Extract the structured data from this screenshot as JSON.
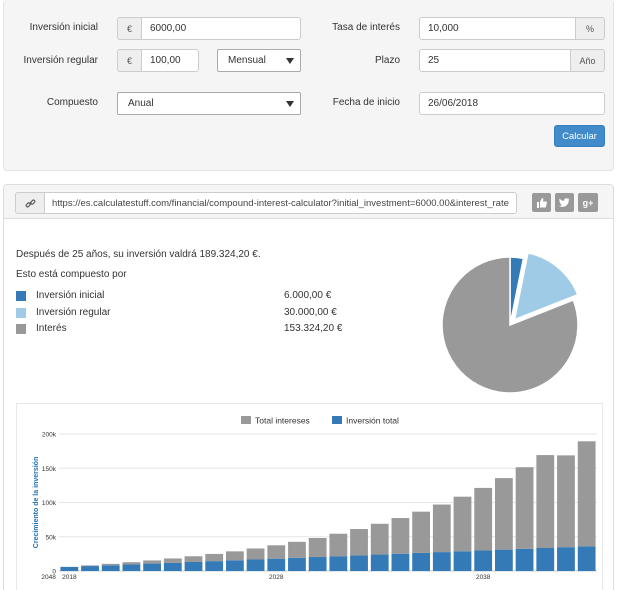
{
  "form": {
    "initial_label": "Inversión inicial",
    "initial_currency": "€",
    "initial_value": "6000,00",
    "regular_label": "Inversión regular",
    "regular_currency": "€",
    "regular_value": "100,00",
    "frequency_value": "Mensual",
    "compound_label": "Compuesto",
    "compound_value": "Anual",
    "rate_label": "Tasa de interés",
    "rate_value": "10,000",
    "rate_unit": "%",
    "term_label": "Plazo",
    "term_value": "25",
    "term_unit": "Año",
    "start_label": "Fecha de inicio",
    "start_value": "26/06/2018",
    "calc_button": "Calcular"
  },
  "share": {
    "url": "https://es.calculatestuff.com/financial/compound-interest-calculator?initial_investment=6000.00&interest_rate",
    "icons": [
      "link-icon",
      "thumbs-up-icon",
      "twitter-icon",
      "google-plus-icon"
    ]
  },
  "results": {
    "summary": "Después de 25 años, su inversión valdrá 189.324,20 €.",
    "compound_by": "Esto está compuesto por",
    "breakdown": [
      {
        "name": "Inversión inicial",
        "value": "6.000,00 €",
        "color": "#337ab7"
      },
      {
        "name": "Inversión regular",
        "value": "30.000,00 €",
        "color": "#9fcbe6"
      },
      {
        "name": "Interés",
        "value": "153.324,20 €",
        "color": "#999999"
      }
    ]
  },
  "chart_data": [
    {
      "type": "pie",
      "labels": [
        "Inversión inicial",
        "Inversión regular",
        "Interés"
      ],
      "values": [
        6000.0,
        30000.0,
        153324.2
      ],
      "colors": [
        "#337ab7",
        "#9fcbe6",
        "#999999"
      ],
      "exploded": "Inversión regular"
    },
    {
      "type": "bar",
      "stacked": true,
      "ylabel": "Crecimiento de la inversión",
      "ylim": [
        0,
        200000
      ],
      "yticks": [
        "0",
        "50k",
        "100k",
        "150k",
        "200k"
      ],
      "yticks_values": [
        0,
        50000,
        100000,
        150000,
        200000
      ],
      "xticks": [
        "2018",
        "2028",
        "2038",
        "2048"
      ],
      "legend_position": "top-center",
      "categories": [
        2018,
        2019,
        2020,
        2021,
        2022,
        2023,
        2024,
        2025,
        2026,
        2027,
        2028,
        2029,
        2030,
        2031,
        2032,
        2033,
        2034,
        2035,
        2036,
        2037,
        2038,
        2039,
        2040,
        2041,
        2042,
        2043
      ],
      "series": [
        {
          "name": "Inversión total",
          "color": "#337ab7",
          "values": [
            6000,
            7200,
            8400,
            9600,
            10800,
            12000,
            13200,
            14400,
            15600,
            16800,
            18000,
            19200,
            20400,
            21600,
            22800,
            24000,
            25200,
            26400,
            27600,
            28800,
            30000,
            31200,
            32400,
            33600,
            34800,
            36000
          ]
        },
        {
          "name": "Total intereses",
          "color": "#999999",
          "values": [
            0,
            1000,
            2000,
            3200,
            4600,
            6300,
            8300,
            10500,
            13100,
            16100,
            19500,
            23400,
            27800,
            32800,
            38500,
            44900,
            52100,
            60200,
            69400,
            79700,
            91300,
            104400,
            119100,
            135600,
            134000,
            153324
          ]
        }
      ]
    }
  ]
}
